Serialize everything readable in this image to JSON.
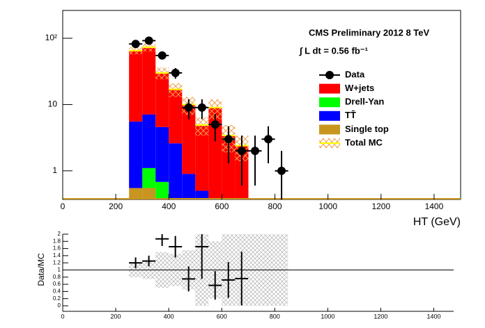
{
  "chart_data": [
    {
      "type": "stacked_histogram",
      "annotations": [
        "CMS Preliminary 2012 8 TeV",
        "∫ L dt = 0.56 fb⁻¹"
      ],
      "x_label": "HT (GeV)",
      "bins": [
        250,
        300,
        350,
        400,
        450,
        500,
        550,
        600,
        650,
        700
      ],
      "xlim": [
        0,
        1500
      ],
      "xticks": [
        0,
        200,
        400,
        600,
        800,
        1000,
        1200,
        1400
      ],
      "ylim": [
        0.37,
        263
      ],
      "log_y": true,
      "yticks": [
        1,
        10,
        {
          "value": 100,
          "label": "10²"
        }
      ],
      "series": [
        {
          "name": "Single top",
          "color": "#c8961e",
          "values": [
            0.55,
            0.55,
            0,
            0,
            0,
            0,
            0,
            0,
            0
          ]
        },
        {
          "name": "Drell-Yan",
          "color": "#00ff00",
          "values": [
            0,
            0.55,
            0.68,
            0,
            0,
            0,
            0,
            0,
            0
          ]
        },
        {
          "name": "TT̄",
          "color": "#0000ff",
          "values": [
            5.0,
            6.0,
            3.9,
            2.6,
            0.9,
            0.5,
            0,
            0,
            0
          ]
        },
        {
          "name": "W+jets",
          "color": "#ff0000",
          "values": [
            59.5,
            66,
            25.4,
            14.4,
            9.1,
            4.4,
            9,
            3.4,
            2.4
          ]
        }
      ],
      "total": {
        "name": "Total MC",
        "color": "#ffff00",
        "hatch_color": "#f0a050",
        "values": [
          65.05,
          73.1,
          29.98,
          17,
          10,
          4.9,
          9,
          3.4,
          2.4
        ],
        "errors": [
          8,
          10,
          6,
          4,
          3,
          1.5,
          3,
          1.5,
          1
        ]
      },
      "data": {
        "name": "Data",
        "color": "#000000",
        "x": [
          275,
          325,
          375,
          425,
          475,
          525,
          575,
          625,
          675,
          725,
          775,
          825
        ],
        "values": [
          82,
          92,
          55,
          30,
          9,
          9,
          5,
          3,
          2,
          2,
          3,
          1
        ],
        "errors": [
          9,
          10,
          7,
          5.5,
          3,
          3,
          2.2,
          1.7,
          1.4,
          1.4,
          1.7,
          1
        ]
      }
    },
    {
      "type": "ratio",
      "y_label": "Data/MC",
      "xlim": [
        0,
        1475
      ],
      "xticks": [
        0,
        200,
        400,
        600,
        800,
        1000,
        1200,
        1400
      ],
      "ylim": [
        0,
        2
      ],
      "yticks": [
        0,
        0.2,
        0.4,
        0.6,
        0.8,
        1,
        1.2,
        1.4,
        1.6,
        1.8,
        2
      ],
      "reference": 1,
      "band_bins": [
        250,
        300,
        350,
        400,
        450,
        500,
        550,
        600,
        650,
        700,
        750,
        800,
        850
      ],
      "band_errors": [
        0.2,
        0.25,
        0.5,
        0.45,
        0.55,
        1.0,
        0.8,
        1,
        1,
        1,
        1,
        1
      ],
      "x": [
        275,
        325,
        375,
        425,
        475,
        525,
        575,
        625,
        675
      ],
      "values": [
        1.2,
        1.25,
        1.87,
        1.65,
        0.75,
        1.65,
        0.57,
        0.72,
        0.76
      ],
      "errors": [
        0.15,
        0.15,
        0.2,
        0.3,
        0.35,
        0.9,
        0.4,
        0.5,
        0.75
      ]
    }
  ]
}
